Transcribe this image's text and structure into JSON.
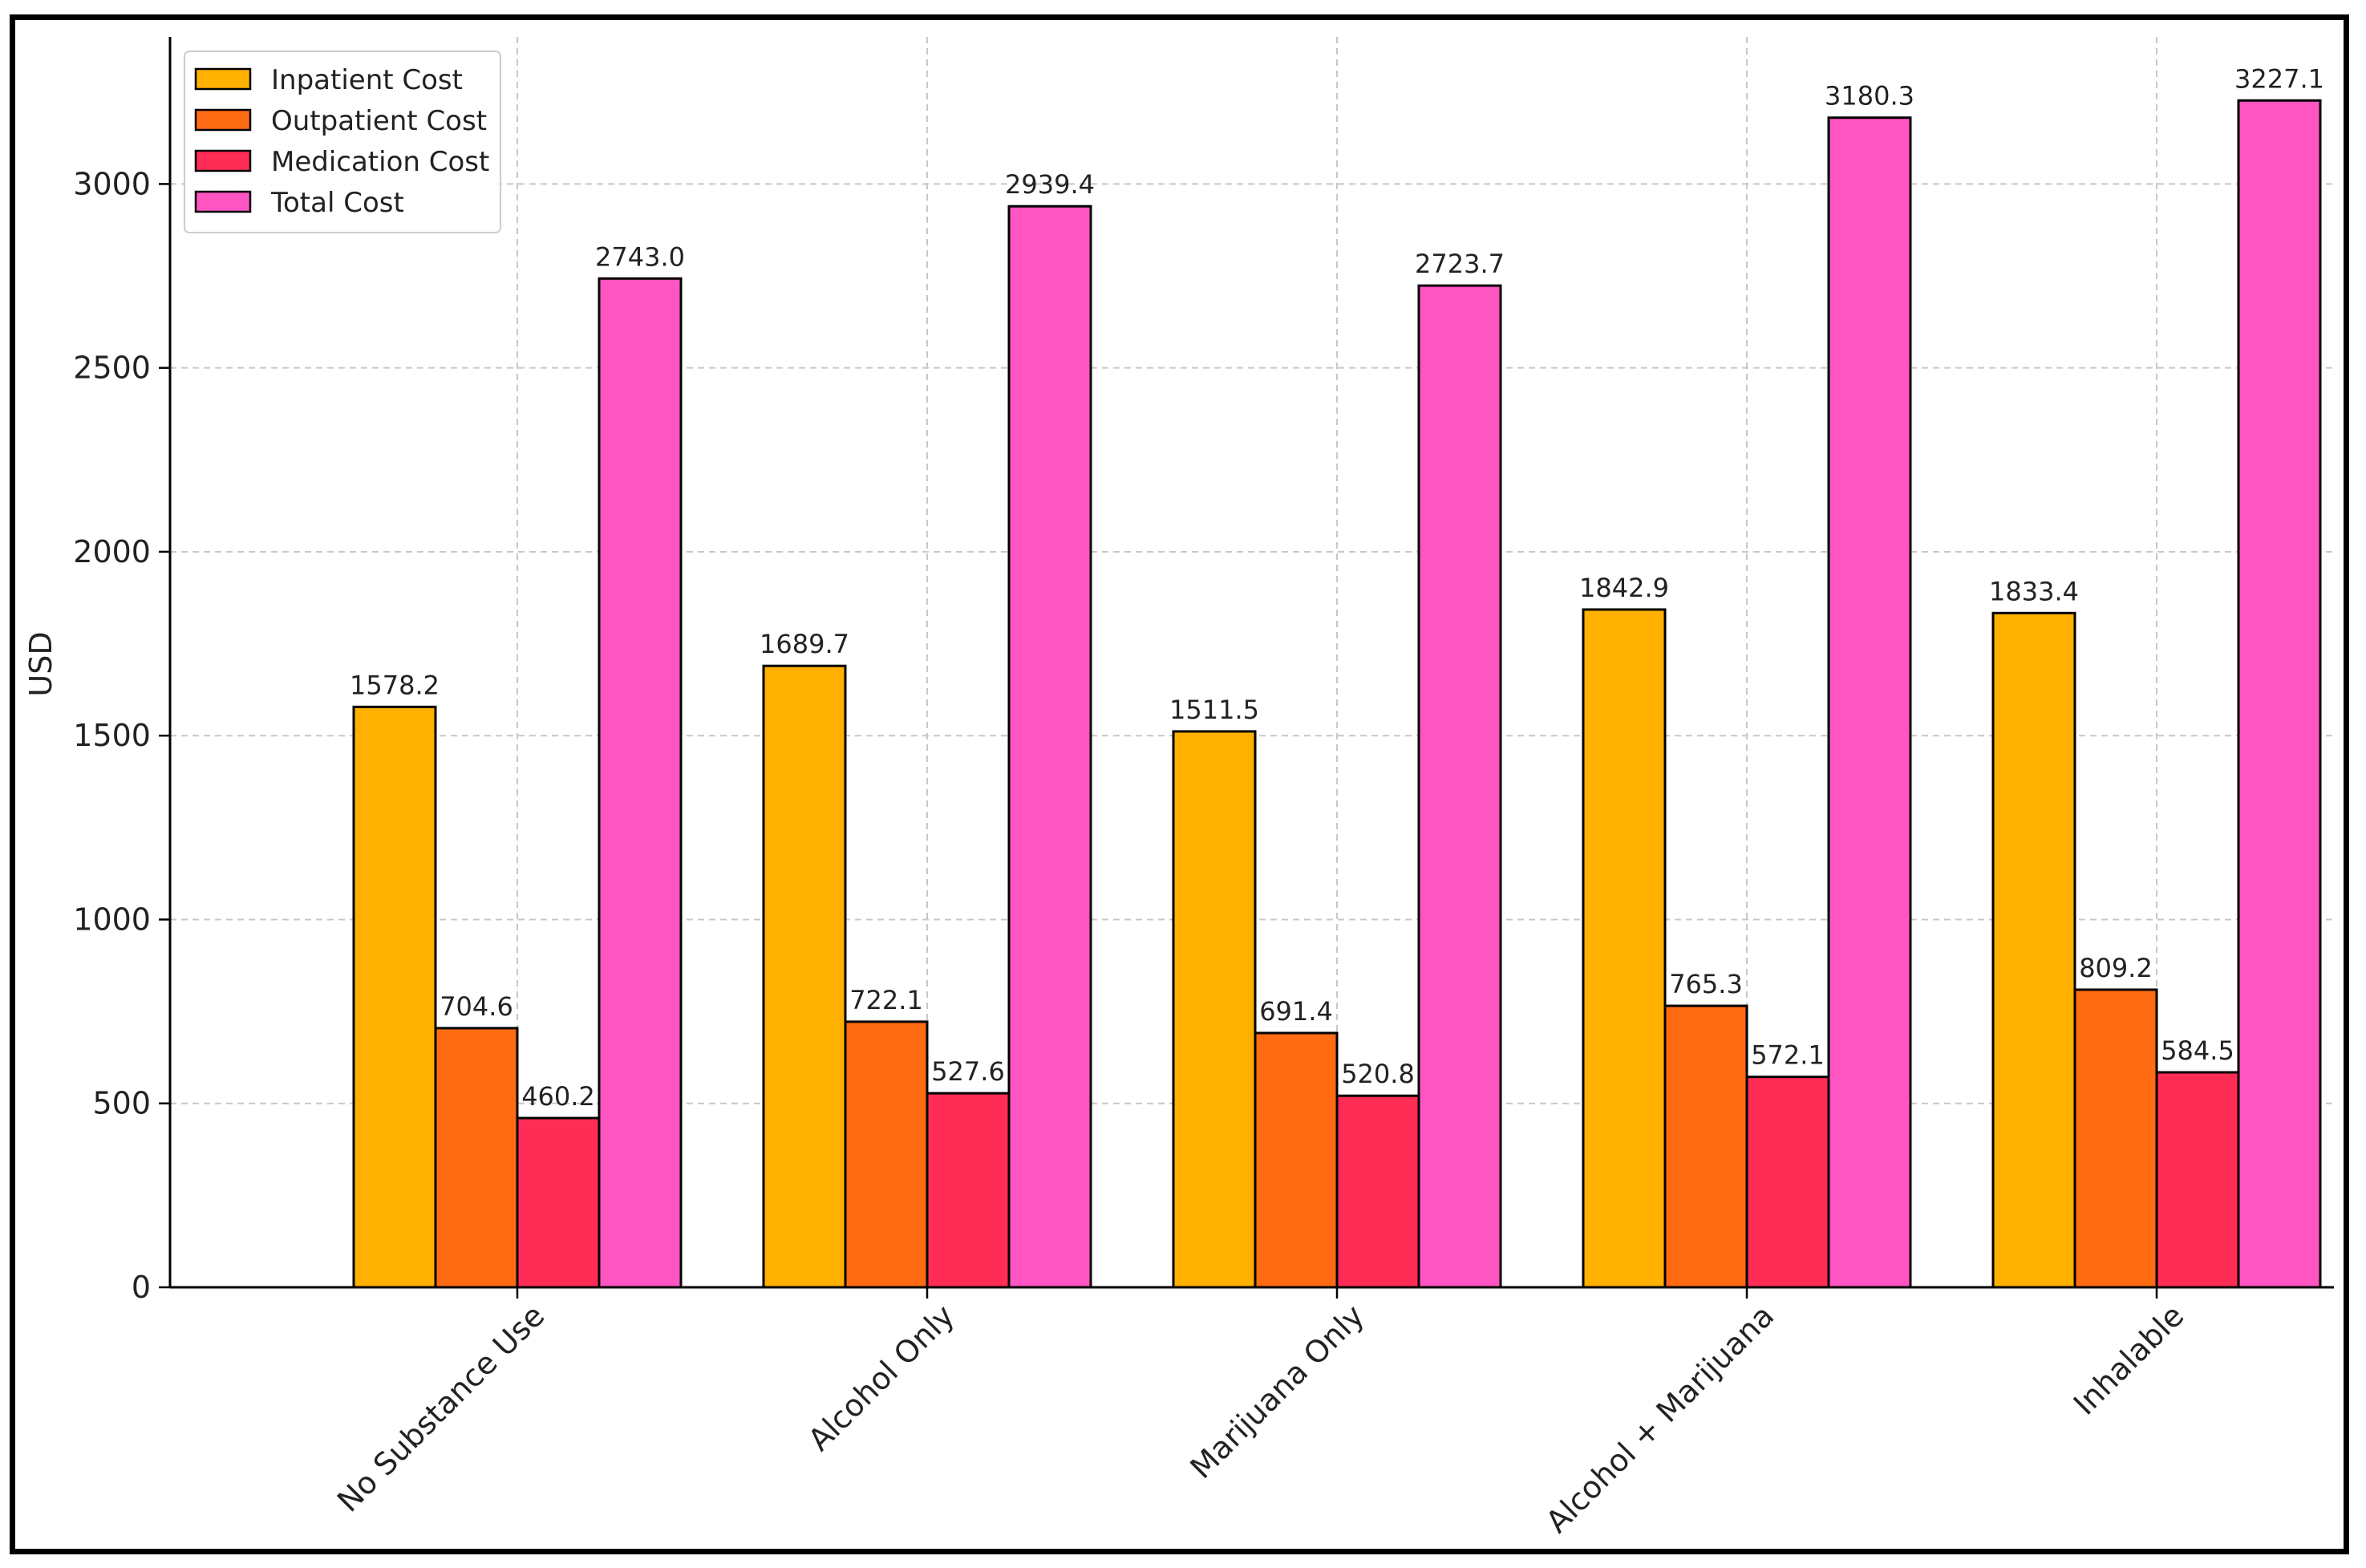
{
  "chart_data": {
    "type": "bar",
    "title": "",
    "xlabel": "",
    "ylabel": "USD",
    "ylim": [
      0,
      3400
    ],
    "yticks": [
      0,
      500,
      1000,
      1500,
      2000,
      2500,
      3000
    ],
    "grid": true,
    "legend_position": "top-left",
    "categories": [
      "No Substance Use",
      "Alcohol Only",
      "Marijuana Only",
      "Alcohol + Marijuana",
      "Inhalable"
    ],
    "series": [
      {
        "name": "Inpatient Cost",
        "color": "#FFB000",
        "values": [
          1578.2,
          1689.7,
          1511.5,
          1842.9,
          1833.4
        ]
      },
      {
        "name": "Outpatient Cost",
        "color": "#FE6B12",
        "values": [
          704.6,
          722.1,
          691.4,
          765.3,
          809.2
        ]
      },
      {
        "name": "Medication Cost",
        "color": "#FF2D55",
        "values": [
          460.2,
          527.6,
          520.8,
          572.1,
          584.5
        ]
      },
      {
        "name": "Total Cost",
        "color": "#FF55C2",
        "values": [
          2743.0,
          2939.4,
          2723.7,
          3180.3,
          3227.1
        ]
      }
    ]
  }
}
